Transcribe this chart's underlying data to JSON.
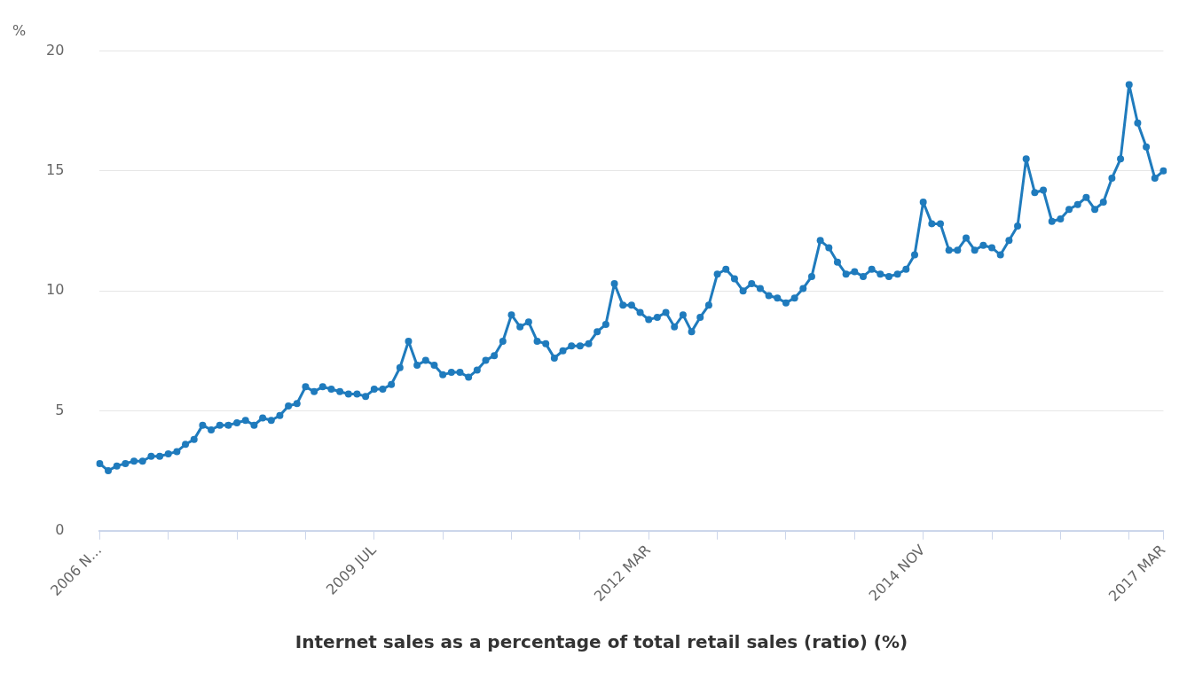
{
  "chart_data": {
    "type": "line",
    "ylabel": "%",
    "categories": [
      "2006 N...",
      null,
      null,
      null,
      null,
      null,
      null,
      null,
      null,
      null,
      null,
      null,
      null,
      null,
      null,
      null,
      null,
      null,
      null,
      null,
      null,
      null,
      null,
      null,
      null,
      null,
      null,
      null,
      null,
      null,
      null,
      null,
      "2009 JUL",
      null,
      null,
      null,
      null,
      null,
      null,
      null,
      null,
      null,
      null,
      null,
      null,
      null,
      null,
      null,
      null,
      null,
      null,
      null,
      null,
      null,
      null,
      null,
      null,
      null,
      null,
      null,
      null,
      null,
      null,
      null,
      "2012 MAR",
      null,
      null,
      null,
      null,
      null,
      null,
      null,
      null,
      null,
      null,
      null,
      null,
      null,
      null,
      null,
      null,
      null,
      null,
      null,
      null,
      null,
      null,
      null,
      null,
      null,
      null,
      null,
      null,
      null,
      null,
      null,
      "2014 NOV",
      null,
      null,
      null,
      null,
      null,
      null,
      null,
      null,
      null,
      null,
      null,
      null,
      null,
      null,
      null,
      null,
      null,
      null,
      null,
      null,
      null,
      null,
      null,
      null,
      null,
      null,
      null,
      "2017 MAR"
    ],
    "series": [
      {
        "name": "Internet sales as a percentage of total retail sales (ratio) (%)",
        "color": "#1f7bbd",
        "values": [
          2.8,
          2.5,
          2.7,
          2.8,
          2.9,
          2.9,
          3.1,
          3.1,
          3.2,
          3.3,
          3.6,
          3.8,
          4.4,
          4.2,
          4.4,
          4.4,
          4.5,
          4.6,
          4.4,
          4.7,
          4.6,
          4.8,
          5.2,
          5.3,
          6.0,
          5.8,
          6.0,
          5.9,
          5.8,
          5.7,
          5.7,
          5.6,
          5.9,
          5.9,
          6.1,
          6.8,
          7.9,
          6.9,
          7.1,
          6.9,
          6.5,
          6.6,
          6.6,
          6.4,
          6.7,
          7.1,
          7.3,
          7.9,
          9.0,
          8.5,
          8.7,
          7.9,
          7.8,
          7.2,
          7.5,
          7.7,
          7.7,
          7.8,
          8.3,
          8.6,
          10.3,
          9.4,
          9.4,
          9.1,
          8.8,
          8.9,
          9.1,
          8.5,
          9.0,
          8.3,
          8.9,
          9.4,
          10.7,
          10.9,
          10.5,
          10.0,
          10.3,
          10.1,
          9.8,
          9.7,
          9.5,
          9.7,
          10.1,
          10.6,
          12.1,
          11.8,
          11.2,
          10.7,
          10.8,
          10.6,
          10.9,
          10.7,
          10.6,
          10.7,
          10.9,
          11.5,
          13.7,
          12.8,
          12.8,
          11.7,
          11.7,
          12.2,
          11.7,
          11.9,
          11.8,
          11.5,
          12.1,
          12.7,
          15.5,
          14.1,
          14.2,
          12.9,
          13.0,
          13.4,
          13.6,
          13.9,
          13.4,
          13.7,
          14.7,
          15.5,
          18.6,
          17.0,
          16.0,
          14.7,
          15.0
        ]
      }
    ],
    "ylim": [
      0,
      20
    ],
    "yticks": [
      0,
      5,
      10,
      15,
      20
    ],
    "grid": "y",
    "legend": "bottom",
    "marker": "circle",
    "line_style": "solid"
  }
}
